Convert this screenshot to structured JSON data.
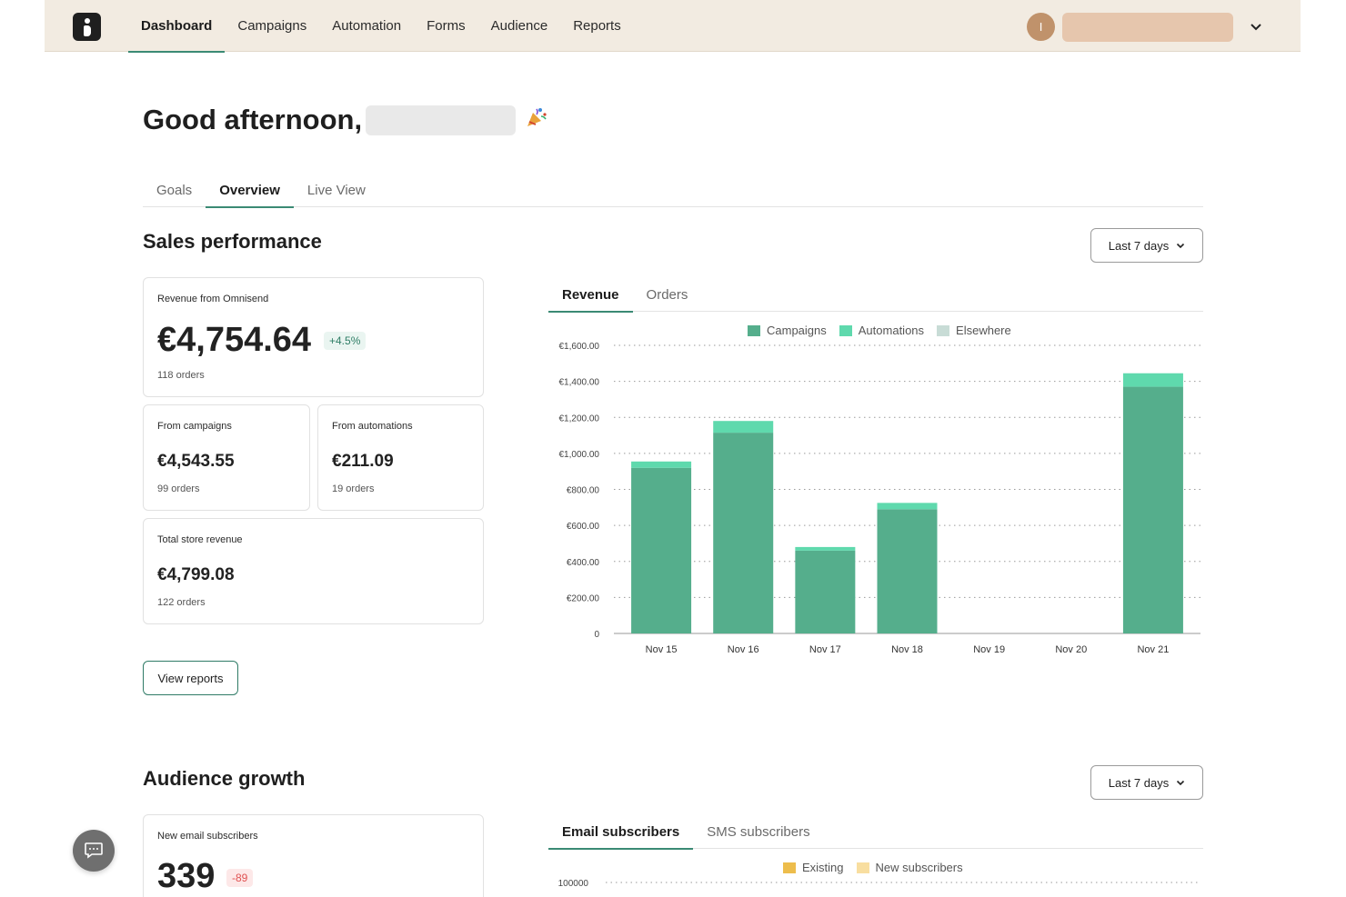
{
  "nav": {
    "items": [
      {
        "label": "Dashboard",
        "active": true
      },
      {
        "label": "Campaigns"
      },
      {
        "label": "Automation"
      },
      {
        "label": "Forms"
      },
      {
        "label": "Audience"
      },
      {
        "label": "Reports"
      }
    ],
    "avatar_initial": "I"
  },
  "greeting": {
    "text": "Good afternoon,"
  },
  "tabs": [
    {
      "label": "Goals"
    },
    {
      "label": "Overview",
      "active": true
    },
    {
      "label": "Live View"
    }
  ],
  "sales": {
    "title": "Sales performance",
    "period": "Last 7 days",
    "revenue_card": {
      "label": "Revenue from Omnisend",
      "value": "€4,754.64",
      "delta": "+4.5%",
      "orders": "118 orders"
    },
    "campaigns_card": {
      "label": "From campaigns",
      "value": "€4,543.55",
      "orders": "99 orders"
    },
    "automations_card": {
      "label": "From automations",
      "value": "€211.09",
      "orders": "19 orders"
    },
    "store_card": {
      "label": "Total store revenue",
      "value": "€4,799.08",
      "orders": "122 orders"
    },
    "view_reports": "View reports",
    "chart_tabs": [
      {
        "label": "Revenue",
        "active": true
      },
      {
        "label": "Orders"
      }
    ],
    "legend": [
      "Campaigns",
      "Automations",
      "Elsewhere"
    ]
  },
  "audience": {
    "title": "Audience growth",
    "period": "Last 7 days",
    "subs_card": {
      "label": "New email subscribers",
      "value": "339",
      "delta": "-89"
    },
    "chart_tabs": [
      {
        "label": "Email subscribers",
        "active": true
      },
      {
        "label": "SMS subscribers"
      }
    ],
    "legend": [
      "Existing",
      "New subscribers"
    ],
    "axis_top": "100000"
  },
  "colors": {
    "accent": "#3b8a74",
    "campaigns": "#55ae8c",
    "automations": "#5fd9ad",
    "elsewhere": "#c8dcd6",
    "existing": "#edbd4c",
    "new_subscribers": "#f8dea0",
    "nav_bg": "#f2ebe1"
  },
  "icons": {
    "logo": "omnisend-logo-icon",
    "chevron": "chevron-down-icon",
    "party": "party-popper-icon",
    "chat": "chat-icon"
  },
  "chart_data": [
    {
      "type": "bar",
      "stacked": true,
      "categories": [
        "Nov 15",
        "Nov 16",
        "Nov 17",
        "Nov 18",
        "Nov 19",
        "Nov 20",
        "Nov 21"
      ],
      "series": [
        {
          "name": "Campaigns",
          "values": [
            920,
            1115,
            460,
            690,
            0,
            0,
            1370
          ]
        },
        {
          "name": "Automations",
          "values": [
            35,
            65,
            20,
            35,
            0,
            0,
            75
          ]
        },
        {
          "name": "Elsewhere",
          "values": [
            0,
            0,
            0,
            0,
            0,
            0,
            0
          ]
        }
      ],
      "yticks": [
        "0",
        "€200.00",
        "€400.00",
        "€600.00",
        "€800.00",
        "€1,000.00",
        "€1,200.00",
        "€1,400.00",
        "€1,600.00"
      ],
      "ylim": [
        0,
        1600
      ],
      "grid": true,
      "legend": "top"
    }
  ]
}
